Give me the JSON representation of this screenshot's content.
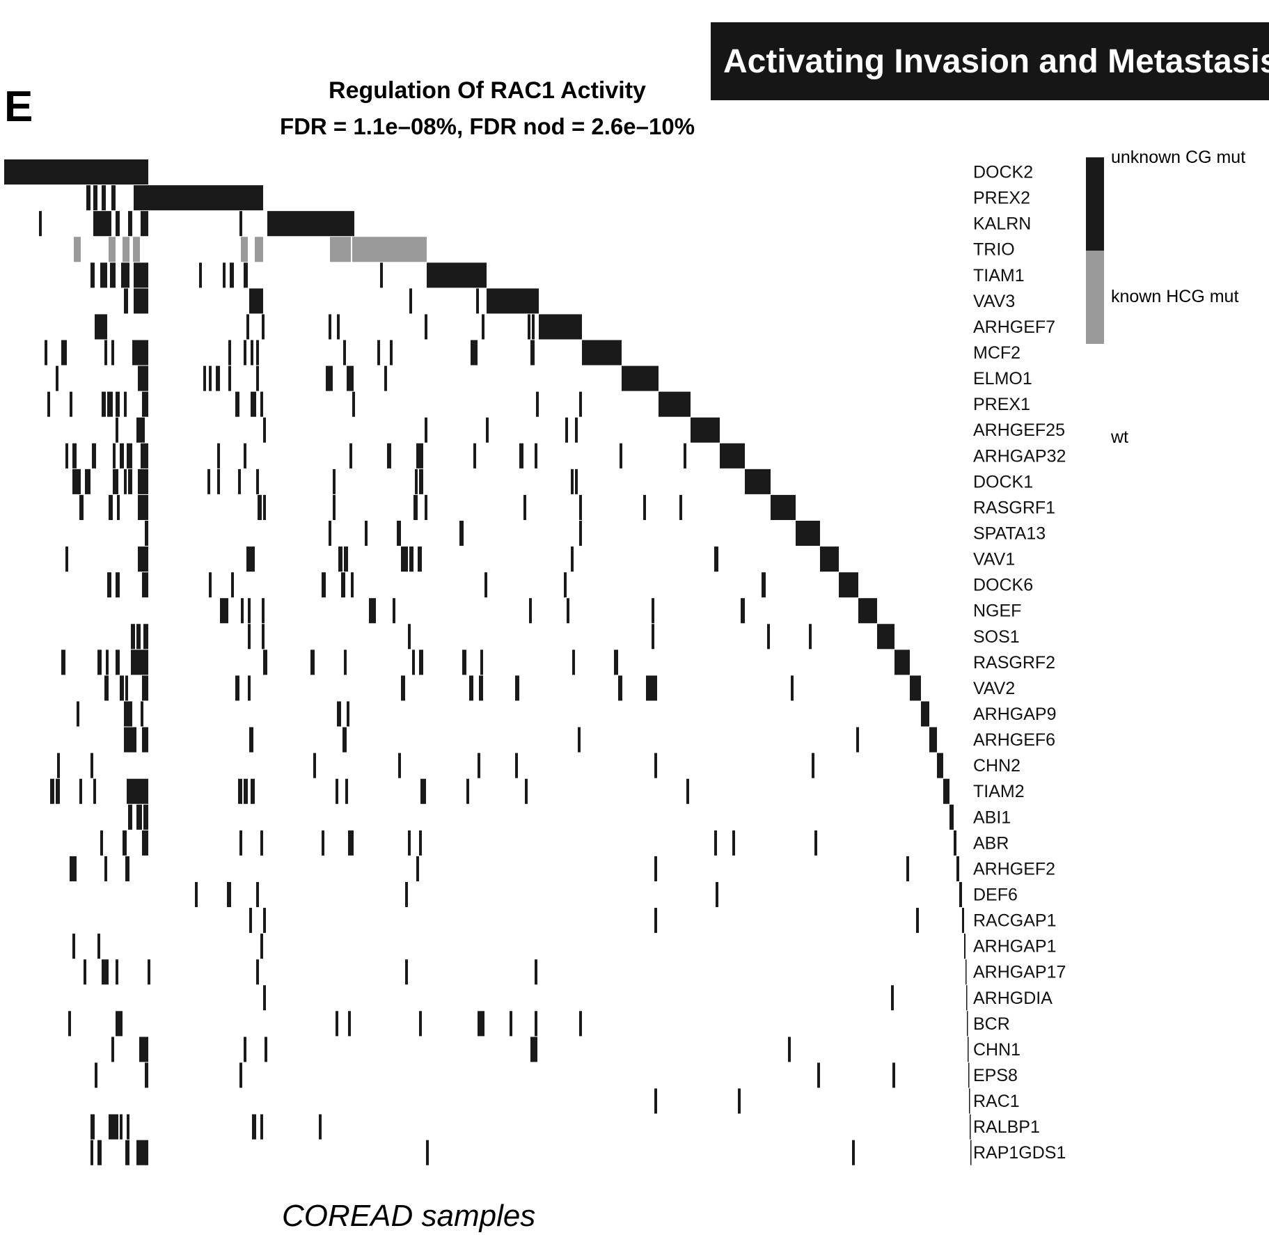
{
  "panel_letter": "E",
  "banner_text": "Activating Invasion and Metastasis",
  "chart_data": {
    "type": "heatmap",
    "title": "Regulation Of RAC1 Activity",
    "subtitle": "FDR = 1.1e–08%, FDR nod = 2.6e–10%",
    "xlabel": "COREAD samples",
    "genes": [
      "DOCK2",
      "PREX2",
      "KALRN",
      "TRIO",
      "TIAM1",
      "VAV3",
      "ARHGEF7",
      "MCF2",
      "ELMO1",
      "PREX1",
      "ARHGEF25",
      "ARHGAP32",
      "DOCK1",
      "RASGRF1",
      "SPATA13",
      "VAV1",
      "DOCK6",
      "NGEF",
      "SOS1",
      "RASGRF2",
      "VAV2",
      "ARHGAP9",
      "ARHGEF6",
      "CHN2",
      "TIAM2",
      "ABI1",
      "ABR",
      "ARHGEF2",
      "DEF6",
      "RACGAP1",
      "ARHGAP1",
      "ARHGAP17",
      "ARHGDIA",
      "BCR",
      "CHN1",
      "EPS8",
      "RAC1",
      "RALBP1",
      "RAP1GDS1"
    ],
    "legend": [
      {
        "label": "unknown CG mut",
        "color": "#1a1a1a"
      },
      {
        "label": "known HCG mut",
        "color": "#999999"
      },
      {
        "label": "wt",
        "color": "#ffffff"
      }
    ],
    "colors": {
      "unknown": "#1a1a1a",
      "known": "#9a9a9a",
      "wt": "#ffffff"
    },
    "sample_range": [
      0,
      1382
    ],
    "exclusive_blocks": [
      [
        0,
        207
      ],
      [
        207,
        372
      ],
      [
        378,
        503
      ],
      [
        500,
        607
      ],
      [
        607,
        693
      ],
      [
        693,
        768
      ],
      [
        768,
        830
      ],
      [
        830,
        887
      ],
      [
        887,
        940
      ],
      [
        940,
        986
      ],
      [
        986,
        1028
      ],
      [
        1028,
        1064
      ],
      [
        1064,
        1101
      ],
      [
        1101,
        1137
      ],
      [
        1137,
        1172
      ],
      [
        1172,
        1199
      ],
      [
        1199,
        1227
      ],
      [
        1227,
        1254
      ],
      [
        1254,
        1279
      ],
      [
        1279,
        1301
      ],
      [
        1301,
        1317
      ],
      [
        1317,
        1329
      ],
      [
        1329,
        1340
      ],
      [
        1340,
        1349
      ],
      [
        1349,
        1358
      ],
      [
        1358,
        1364
      ],
      [
        1364,
        1368
      ],
      [
        1368,
        1372
      ],
      [
        1372,
        1376
      ],
      [
        1376,
        1379
      ],
      [
        1379,
        1381
      ],
      [
        1381,
        1382
      ],
      [
        1382,
        1383
      ],
      [
        1383,
        1384
      ],
      [
        1384,
        1385
      ],
      [
        1385,
        1386
      ],
      [
        1386,
        1387
      ],
      [
        1387,
        1388
      ],
      [
        1388,
        1389
      ]
    ],
    "known_mutations": {
      "TRIO": [
        [
          100,
          110
        ],
        [
          150,
          160
        ],
        [
          170,
          180
        ],
        [
          185,
          195
        ],
        [
          340,
          350
        ],
        [
          360,
          372
        ],
        [
          468,
          480
        ],
        [
          480,
          498
        ]
      ]
    },
    "extra_mutations": [
      [],
      [
        [
          118,
          124
        ],
        [
          128,
          134
        ],
        [
          140,
          146
        ],
        [
          154,
          160
        ],
        [
          186,
          207
        ]
      ],
      [
        [
          50,
          54
        ],
        [
          128,
          154
        ],
        [
          160,
          166
        ],
        [
          178,
          184
        ],
        [
          196,
          207
        ],
        [
          338,
          342
        ]
      ],
      [],
      [
        [
          124,
          130
        ],
        [
          138,
          148
        ],
        [
          152,
          160
        ],
        [
          168,
          180
        ],
        [
          186,
          207
        ],
        [
          280,
          284
        ],
        [
          314,
          318
        ],
        [
          324,
          330
        ],
        [
          344,
          350
        ],
        [
          540,
          544
        ]
      ],
      [
        [
          172,
          178
        ],
        [
          186,
          207
        ],
        [
          352,
          372
        ],
        [
          582,
          586
        ],
        [
          678,
          682
        ]
      ],
      [
        [
          130,
          140
        ],
        [
          140,
          148
        ],
        [
          348,
          352
        ],
        [
          370,
          374
        ],
        [
          466,
          470
        ],
        [
          478,
          482
        ],
        [
          604,
          608
        ],
        [
          686,
          690
        ],
        [
          752,
          756
        ],
        [
          758,
          762
        ]
      ],
      [
        [
          58,
          62
        ],
        [
          82,
          90
        ],
        [
          144,
          148
        ],
        [
          154,
          158
        ],
        [
          184,
          207
        ],
        [
          322,
          326
        ],
        [
          344,
          348
        ],
        [
          354,
          358
        ],
        [
          362,
          366
        ],
        [
          487,
          491
        ],
        [
          536,
          540
        ],
        [
          554,
          558
        ],
        [
          670,
          680
        ],
        [
          756,
          762
        ]
      ],
      [
        [
          74,
          78
        ],
        [
          192,
          207
        ],
        [
          286,
          290
        ],
        [
          294,
          298
        ],
        [
          304,
          310
        ],
        [
          322,
          326
        ],
        [
          362,
          366
        ],
        [
          462,
          472
        ],
        [
          492,
          502
        ],
        [
          546,
          550
        ]
      ],
      [
        [
          62,
          66
        ],
        [
          94,
          98
        ],
        [
          140,
          146
        ],
        [
          148,
          156
        ],
        [
          160,
          166
        ],
        [
          172,
          176
        ],
        [
          198,
          207
        ],
        [
          332,
          338
        ],
        [
          354,
          362
        ],
        [
          368,
          372
        ],
        [
          500,
          504
        ],
        [
          764,
          768
        ],
        [
          826,
          830
        ]
      ],
      [
        [
          160,
          164
        ],
        [
          190,
          196
        ],
        [
          196,
          202
        ],
        [
          372,
          376
        ],
        [
          604,
          608
        ],
        [
          692,
          696
        ],
        [
          806,
          810
        ],
        [
          820,
          824
        ]
      ],
      [
        [
          88,
          92
        ],
        [
          98,
          104
        ],
        [
          126,
          132
        ],
        [
          156,
          160
        ],
        [
          166,
          172
        ],
        [
          176,
          184
        ],
        [
          196,
          207
        ],
        [
          306,
          310
        ],
        [
          344,
          348
        ],
        [
          496,
          500
        ],
        [
          550,
          556
        ],
        [
          592,
          598
        ],
        [
          598,
          602
        ],
        [
          674,
          678
        ],
        [
          740,
          746
        ],
        [
          762,
          766
        ],
        [
          884,
          888
        ],
        [
          976,
          980
        ]
      ],
      [
        [
          98,
          110
        ],
        [
          116,
          124
        ],
        [
          156,
          164
        ],
        [
          172,
          176
        ],
        [
          178,
          184
        ],
        [
          192,
          207
        ],
        [
          292,
          296
        ],
        [
          306,
          310
        ],
        [
          336,
          340
        ],
        [
          362,
          366
        ],
        [
          472,
          476
        ],
        [
          590,
          594
        ],
        [
          596,
          602
        ],
        [
          814,
          818
        ],
        [
          820,
          824
        ]
      ],
      [
        [
          108,
          114
        ],
        [
          150,
          156
        ],
        [
          162,
          166
        ],
        [
          192,
          207
        ],
        [
          364,
          370
        ],
        [
          372,
          376
        ],
        [
          472,
          476
        ],
        [
          588,
          594
        ],
        [
          604,
          608
        ],
        [
          746,
          750
        ],
        [
          826,
          830
        ],
        [
          918,
          922
        ],
        [
          970,
          974
        ]
      ],
      [
        [
          202,
          207
        ],
        [
          466,
          470
        ],
        [
          518,
          522
        ],
        [
          564,
          570
        ],
        [
          654,
          660
        ],
        [
          826,
          830
        ]
      ],
      [
        [
          88,
          92
        ],
        [
          192,
          207
        ],
        [
          348,
          360
        ],
        [
          480,
          486
        ],
        [
          488,
          494
        ],
        [
          570,
          580
        ],
        [
          582,
          588
        ],
        [
          594,
          600
        ],
        [
          814,
          818
        ],
        [
          1020,
          1026
        ]
      ],
      [
        [
          148,
          154
        ],
        [
          160,
          166
        ],
        [
          198,
          207
        ],
        [
          294,
          298
        ],
        [
          326,
          330
        ],
        [
          456,
          462
        ],
        [
          484,
          490
        ],
        [
          498,
          502
        ],
        [
          690,
          694
        ],
        [
          804,
          808
        ],
        [
          1088,
          1094
        ]
      ],
      [
        [
          310,
          316
        ],
        [
          316,
          322
        ],
        [
          340,
          344
        ],
        [
          350,
          354
        ],
        [
          370,
          374
        ],
        [
          524,
          534
        ],
        [
          558,
          562
        ],
        [
          754,
          758
        ],
        [
          808,
          812
        ],
        [
          930,
          934
        ],
        [
          1058,
          1064
        ]
      ],
      [
        [
          182,
          188
        ],
        [
          190,
          196
        ],
        [
          200,
          207
        ],
        [
          350,
          354
        ],
        [
          370,
          374
        ],
        [
          580,
          584
        ],
        [
          930,
          934
        ],
        [
          1096,
          1100
        ],
        [
          1156,
          1160
        ]
      ],
      [
        [
          82,
          88
        ],
        [
          134,
          140
        ],
        [
          146,
          150
        ],
        [
          160,
          166
        ],
        [
          182,
          207
        ],
        [
          372,
          378
        ],
        [
          440,
          446
        ],
        [
          488,
          492
        ],
        [
          586,
          590
        ],
        [
          596,
          602
        ],
        [
          658,
          664
        ],
        [
          684,
          688
        ],
        [
          816,
          820
        ],
        [
          876,
          882
        ]
      ],
      [
        [
          144,
          150
        ],
        [
          166,
          172
        ],
        [
          174,
          178
        ],
        [
          198,
          207
        ],
        [
          332,
          338
        ],
        [
          350,
          354
        ],
        [
          570,
          576
        ],
        [
          668,
          674
        ],
        [
          682,
          688
        ],
        [
          734,
          740
        ],
        [
          882,
          888
        ],
        [
          922,
          938
        ],
        [
          1130,
          1134
        ]
      ],
      [
        [
          104,
          108
        ],
        [
          172,
          180
        ],
        [
          178,
          184
        ],
        [
          196,
          200
        ],
        [
          478,
          484
        ],
        [
          492,
          496
        ]
      ],
      [
        [
          172,
          180
        ],
        [
          180,
          190
        ],
        [
          198,
          207
        ],
        [
          352,
          358
        ],
        [
          486,
          492
        ],
        [
          824,
          828
        ],
        [
          1224,
          1228
        ]
      ],
      [
        [
          76,
          80
        ],
        [
          124,
          128
        ],
        [
          444,
          448
        ],
        [
          566,
          570
        ],
        [
          680,
          684
        ],
        [
          734,
          738
        ],
        [
          934,
          938
        ],
        [
          1160,
          1164
        ]
      ],
      [
        [
          66,
          72
        ],
        [
          74,
          80
        ],
        [
          108,
          112
        ],
        [
          128,
          132
        ],
        [
          176,
          207
        ],
        [
          336,
          342
        ],
        [
          344,
          350
        ],
        [
          354,
          360
        ],
        [
          476,
          480
        ],
        [
          490,
          494
        ],
        [
          598,
          606
        ],
        [
          664,
          668
        ],
        [
          748,
          752
        ],
        [
          980,
          984
        ]
      ],
      [
        [
          178,
          184
        ],
        [
          190,
          198
        ],
        [
          200,
          207
        ]
      ],
      [
        [
          138,
          142
        ],
        [
          170,
          176
        ],
        [
          198,
          207
        ],
        [
          338,
          342
        ],
        [
          368,
          372
        ],
        [
          456,
          460
        ],
        [
          494,
          502
        ],
        [
          580,
          584
        ],
        [
          596,
          600
        ],
        [
          1020,
          1024
        ],
        [
          1046,
          1050
        ],
        [
          1164,
          1168
        ]
      ],
      [
        [
          94,
          104
        ],
        [
          144,
          148
        ],
        [
          174,
          180
        ],
        [
          592,
          596
        ],
        [
          934,
          938
        ],
        [
          1296,
          1300
        ]
      ],
      [
        [
          274,
          278
        ],
        [
          320,
          326
        ],
        [
          362,
          366
        ],
        [
          576,
          580
        ],
        [
          1022,
          1026
        ]
      ],
      [
        [
          352,
          356
        ],
        [
          372,
          376
        ],
        [
          934,
          938
        ],
        [
          1310,
          1314
        ]
      ],
      [
        [
          98,
          102
        ],
        [
          134,
          138
        ],
        [
          368,
          372
        ]
      ],
      [
        [
          114,
          118
        ],
        [
          140,
          150
        ],
        [
          160,
          164
        ],
        [
          206,
          210
        ],
        [
          362,
          366
        ],
        [
          576,
          580
        ],
        [
          762,
          766
        ]
      ],
      [
        [
          372,
          376
        ],
        [
          1274,
          1278
        ]
      ],
      [
        [
          92,
          96
        ],
        [
          160,
          170
        ],
        [
          476,
          480
        ],
        [
          494,
          498
        ],
        [
          596,
          600
        ],
        [
          680,
          690
        ],
        [
          726,
          730
        ],
        [
          762,
          766
        ],
        [
          826,
          830
        ]
      ],
      [
        [
          154,
          158
        ],
        [
          194,
          200
        ],
        [
          200,
          207
        ],
        [
          344,
          348
        ],
        [
          374,
          378
        ],
        [
          756,
          766
        ],
        [
          1126,
          1130
        ]
      ],
      [
        [
          130,
          134
        ],
        [
          202,
          207
        ],
        [
          338,
          342
        ],
        [
          1168,
          1172
        ],
        [
          1276,
          1280
        ]
      ],
      [
        [
          934,
          938
        ],
        [
          1054,
          1058
        ]
      ],
      [
        [
          124,
          130
        ],
        [
          150,
          164
        ],
        [
          166,
          170
        ],
        [
          176,
          180
        ],
        [
          356,
          362
        ],
        [
          368,
          372
        ],
        [
          452,
          456
        ]
      ],
      [
        [
          124,
          128
        ],
        [
          134,
          140
        ],
        [
          174,
          180
        ],
        [
          190,
          207
        ],
        [
          606,
          610
        ],
        [
          1218,
          1222
        ]
      ]
    ]
  }
}
